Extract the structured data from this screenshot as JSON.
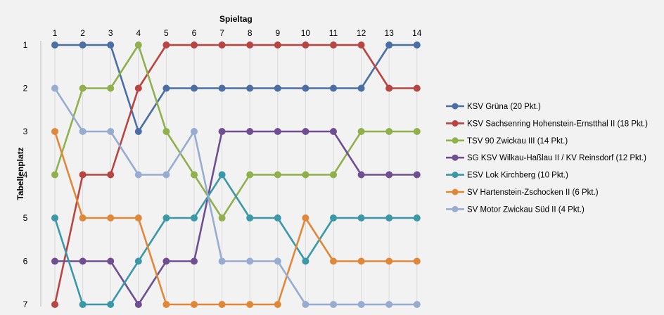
{
  "chart_data": {
    "type": "line",
    "xlabel": "Spieltag",
    "ylabel": "Tabellenplatz",
    "x": [
      1,
      2,
      3,
      4,
      5,
      6,
      7,
      8,
      9,
      10,
      11,
      12,
      13,
      14
    ],
    "ylim": [
      1,
      7
    ],
    "y_reversed": true,
    "y_ticks": [
      1,
      2,
      3,
      4,
      5,
      6,
      7
    ],
    "x_axis_position": "top",
    "grid": "vertical",
    "legend": "right",
    "series": [
      {
        "name": "KSV Grüna (20 Pkt.)",
        "color": "#4a6fa5",
        "values": [
          1,
          1,
          1,
          3,
          2,
          2,
          2,
          2,
          2,
          2,
          2,
          2,
          1,
          1
        ]
      },
      {
        "name": "KSV Sachsenring Hohenstein-Ernstthal II (18 Pkt.)",
        "color": "#b84542",
        "values": [
          7,
          4,
          4,
          2,
          1,
          1,
          1,
          1,
          1,
          1,
          1,
          1,
          2,
          2
        ]
      },
      {
        "name": "TSV 90 Zwickau III (14 Pkt.)",
        "color": "#8fb04c",
        "values": [
          4,
          2,
          2,
          1,
          3,
          4,
          5,
          4,
          4,
          4,
          4,
          3,
          3,
          3
        ]
      },
      {
        "name": "SG KSV Wilkau-Haßlau II / KV Reinsdorf (12 Pkt.)",
        "color": "#6f4f91",
        "values": [
          6,
          6,
          6,
          7,
          6,
          6,
          3,
          3,
          3,
          3,
          3,
          4,
          4,
          4
        ]
      },
      {
        "name": "ESV Lok Kirchberg (10 Pkt.)",
        "color": "#3a98a8",
        "values": [
          5,
          7,
          7,
          6,
          5,
          5,
          4,
          5,
          5,
          6,
          5,
          5,
          5,
          5
        ]
      },
      {
        "name": "SV Hartenstein-Zschocken II (6 Pkt.)",
        "color": "#e0883a",
        "values": [
          3,
          5,
          5,
          5,
          7,
          7,
          7,
          7,
          7,
          5,
          6,
          6,
          6,
          6
        ]
      },
      {
        "name": "SV Motor Zwickau Süd II (4 Pkt.)",
        "color": "#97acd0",
        "values": [
          2,
          3,
          3,
          4,
          4,
          3,
          6,
          6,
          6,
          7,
          7,
          7,
          7,
          7
        ]
      }
    ]
  }
}
